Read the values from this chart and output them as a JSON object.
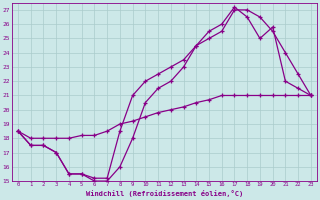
{
  "xlabel": "Windchill (Refroidissement éolien,°C)",
  "bg_color": "#cce8e8",
  "grid_color": "#aacccc",
  "line_color": "#880088",
  "xlim": [
    -0.5,
    23.5
  ],
  "ylim": [
    15,
    27.5
  ],
  "xticks": [
    0,
    1,
    2,
    3,
    4,
    5,
    6,
    7,
    8,
    9,
    10,
    11,
    12,
    13,
    14,
    15,
    16,
    17,
    18,
    19,
    20,
    21,
    22,
    23
  ],
  "yticks": [
    15,
    16,
    17,
    18,
    19,
    20,
    21,
    22,
    23,
    24,
    25,
    26,
    27
  ],
  "line1_x": [
    0,
    1,
    2,
    3,
    4,
    5,
    6,
    7,
    8,
    9,
    10,
    11,
    12,
    13,
    14,
    15,
    16,
    17,
    18,
    19,
    20,
    21,
    22,
    23
  ],
  "line1_y": [
    18.5,
    17.5,
    17.5,
    17.0,
    15.5,
    15.5,
    15.0,
    15.0,
    16.0,
    18.0,
    20.5,
    21.5,
    22.0,
    23.0,
    24.5,
    25.0,
    25.5,
    27.0,
    27.0,
    26.5,
    25.5,
    24.0,
    22.5,
    21.0
  ],
  "line2_x": [
    0,
    1,
    2,
    3,
    4,
    5,
    6,
    7,
    8,
    9,
    10,
    11,
    12,
    13,
    14,
    15,
    16,
    17,
    18,
    19,
    20,
    21,
    22,
    23
  ],
  "line2_y": [
    18.5,
    17.5,
    17.5,
    17.0,
    15.5,
    15.5,
    15.2,
    15.2,
    18.5,
    21.0,
    22.0,
    22.5,
    23.0,
    23.5,
    24.5,
    25.5,
    26.0,
    27.2,
    26.5,
    25.0,
    25.8,
    22.0,
    21.5,
    21.0
  ],
  "line3_x": [
    0,
    1,
    2,
    3,
    4,
    5,
    6,
    7,
    8,
    9,
    10,
    11,
    12,
    13,
    14,
    15,
    16,
    17,
    18,
    19,
    20,
    21,
    22,
    23
  ],
  "line3_y": [
    18.5,
    18.0,
    18.0,
    18.0,
    18.0,
    18.2,
    18.2,
    18.5,
    19.0,
    19.2,
    19.5,
    19.8,
    20.0,
    20.2,
    20.5,
    20.7,
    21.0,
    21.0,
    21.0,
    21.0,
    21.0,
    21.0,
    21.0,
    21.0
  ]
}
